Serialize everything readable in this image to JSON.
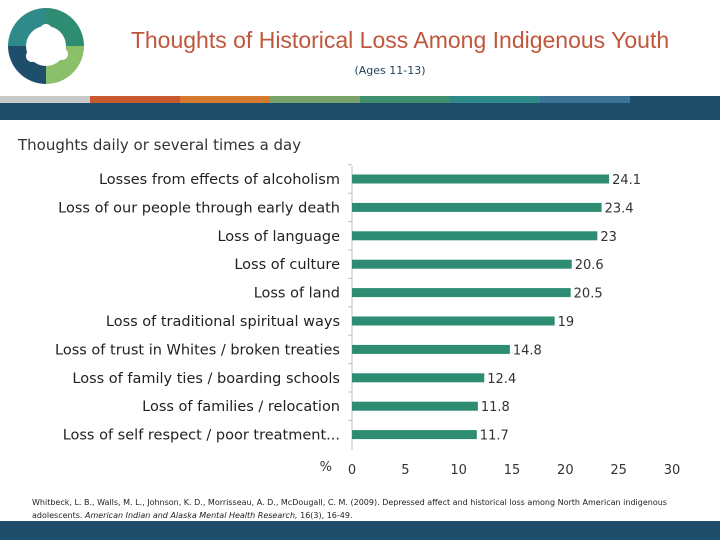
{
  "header": {
    "title": "Thoughts of Historical Loss Among Indigenous Youth",
    "subtitle": "(Ages 11-13)"
  },
  "section_label": "Thoughts daily or several times a day",
  "colors": {
    "bar": "#2e8c72",
    "title": "#c0563b",
    "dark_blue": "#1f4e6b",
    "stripe": [
      "#c9c9c9",
      "#c8582d",
      "#d4792e",
      "#7aa36b",
      "#3f8f6e",
      "#2f8a8a",
      "#3b7496",
      "#1f4e6b"
    ]
  },
  "chart_data": {
    "type": "bar",
    "orientation": "horizontal",
    "categories": [
      "Losses from effects of alcoholism",
      "Loss of our people through early death",
      "Loss of language",
      "Loss of culture",
      "Loss of land",
      "Loss of traditional spiritual ways",
      "Loss of trust in Whites / broken treaties",
      "Loss of family ties / boarding schools",
      "Loss of families / relocation",
      "Loss of self respect / poor treatment..."
    ],
    "values": [
      24.1,
      23.4,
      23,
      20.6,
      20.5,
      19,
      14.8,
      12.4,
      11.8,
      11.7
    ],
    "value_labels": [
      "24.1",
      "23.4",
      "23",
      "20.6",
      "20.5",
      "19",
      "14.8",
      "12.4",
      "11.8",
      "11.7"
    ],
    "xlabel": "%",
    "xlim": [
      0,
      30
    ],
    "xticks": [
      "0",
      "5",
      "10",
      "15",
      "20",
      "25",
      "30"
    ],
    "grid": false,
    "legend": "none"
  },
  "citation": {
    "text": "Whitbeck, L. B., Walls, M. L., Johnson, K. D., Morrisseau, A. D., McDougall, C. M. (2009).  Depressed affect and historical loss among North American indigenous adolescents. ",
    "journal": "American Indian and Alaska Mental Health Research,",
    "volume": " 16(3), 16-49."
  }
}
